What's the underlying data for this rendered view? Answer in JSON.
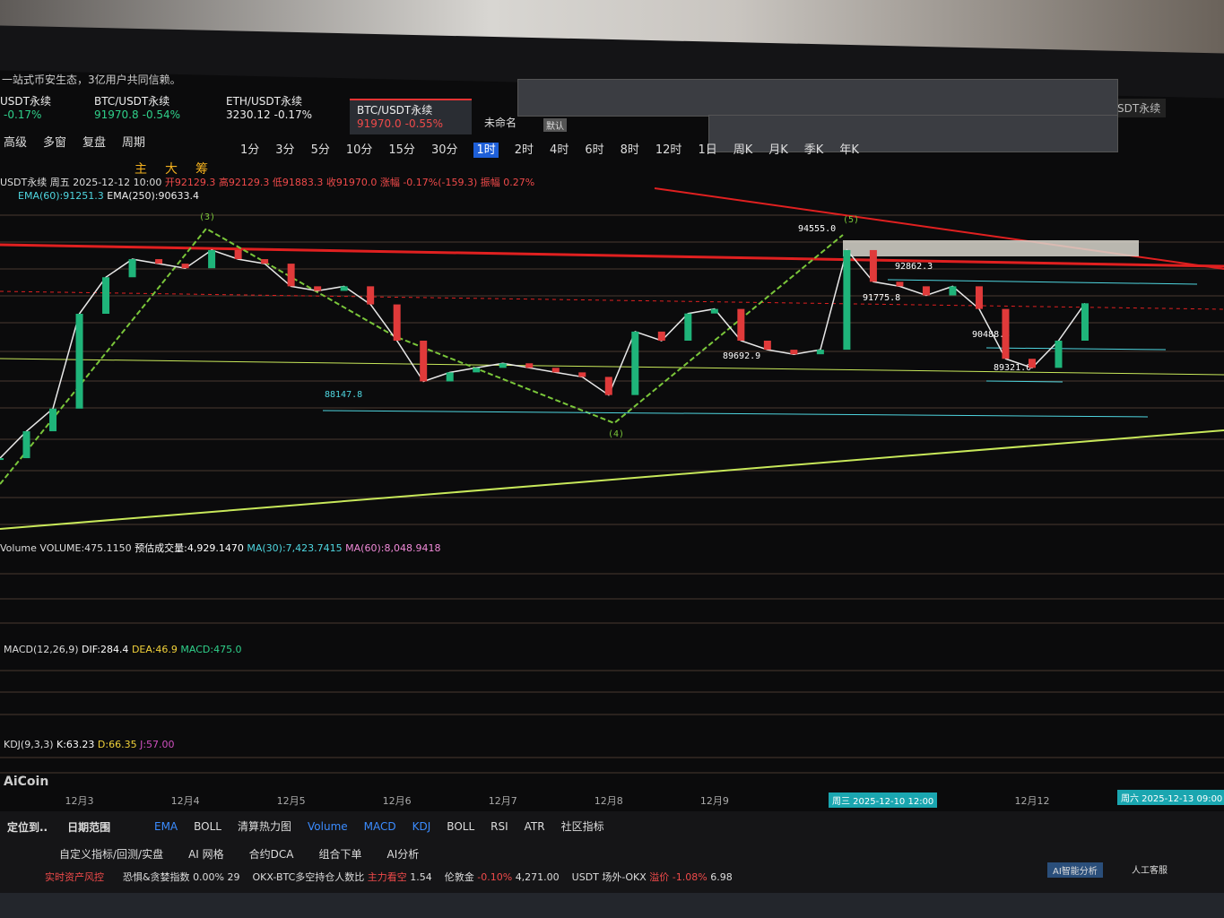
{
  "header": {
    "notice": "一站式币安生态，3亿用户共同信赖。"
  },
  "tickers": [
    {
      "name": "USDT永续",
      "price": "",
      "change": "-0.17%"
    },
    {
      "name": "BTC/USDT永续",
      "price": "91970.8",
      "change": "-0.54%"
    },
    {
      "name": "ETH/USDT永续",
      "price": "3230.12",
      "change": "-0.17%"
    },
    {
      "name": "BTC/USDT永续",
      "price": "91970.0",
      "change": "-0.55%"
    }
  ],
  "layout_tabs": {
    "unnamed": "未命名",
    "default": "默认",
    "right_symbol": "SDT永续"
  },
  "menu": [
    "高级",
    "多窗",
    "复盘",
    "周期"
  ],
  "timeframes": [
    "1分",
    "3分",
    "5分",
    "10分",
    "15分",
    "30分",
    "1时",
    "2时",
    "4时",
    "6时",
    "8时",
    "12时",
    "1日",
    "周K",
    "月K",
    "季K",
    "年K"
  ],
  "active_timeframe": "1时",
  "chart_tools": [
    "主",
    "大",
    "筹"
  ],
  "info_line": {
    "symbol": "USDT永续 周五 2025-12-12 10:00",
    "open": "开92129.3",
    "high": "高92129.3",
    "low": "低91883.3",
    "close": "收91970.0",
    "change": "涨幅 -0.17%(-159.3)",
    "amplitude": "振幅 0.27%"
  },
  "ema_line": {
    "ema60": "EMA(60):91251.3",
    "ema250": "EMA(250):90633.4"
  },
  "chart_data": {
    "type": "line",
    "categories": [
      null,
      null,
      null,
      "12月3",
      null,
      null,
      null,
      "12月4",
      null,
      null,
      null,
      "12月5",
      null,
      null,
      null,
      "12月6",
      null,
      null,
      null,
      "12月7",
      null,
      null,
      null,
      "12月8",
      null,
      null,
      null,
      "12月9",
      null,
      null,
      null,
      null,
      null,
      null,
      null,
      null,
      null,
      null,
      null,
      "12月12",
      null,
      null
    ],
    "series": [
      {
        "name": "BTC/USDT永续",
        "color": "#e8e8e8",
        "values": [
          86500,
          87450,
          88250,
          91600,
          92890,
          93530,
          93370,
          93210,
          93850,
          93530,
          93370,
          92570,
          92410,
          92570,
          91930,
          90650,
          89210,
          89530,
          89690,
          89850,
          89690,
          89530,
          89370,
          88730,
          90970,
          90650,
          91610,
          91770,
          90650,
          90330,
          90170,
          90330,
          93850,
          92730,
          92570,
          92250,
          92570,
          91770,
          90010,
          89690,
          90650,
          91970
        ]
      }
    ],
    "ylim": [
      84000,
      95400
    ],
    "annotations": [
      "94555.0",
      "92862.3",
      "91775.8",
      "90488.8",
      "89321.0",
      "89692.9",
      "88147.8",
      "(3)",
      "(4)",
      "(5)"
    ]
  },
  "panels": {
    "volume": {
      "name": "Volume VOLUME:475.1150",
      "estimate": "预估成交量:4,929.1470",
      "ma30": "MA(30):7,423.7415",
      "ma60": "MA(60):8,048.9418"
    },
    "macd": {
      "name": "MACD(12,26,9)",
      "dif": "DIF:284.4",
      "dea": "DEA:46.9",
      "macd": "MACD:475.0"
    },
    "kdj": {
      "name": "KDJ(9,3,3)",
      "k": "K:63.23",
      "d": "D:66.35",
      "j": "J:57.00"
    }
  },
  "crosshair": {
    "left": "周三 2025-12-10 12:00",
    "right": "周六 2025-12-13 09:00"
  },
  "brand": "AiCoin",
  "indicator_tabs": [
    "EMA",
    "BOLL",
    "清算热力图",
    "Volume",
    "MACD",
    "KDJ",
    "BOLL",
    "RSI",
    "ATR",
    "社区指标"
  ],
  "left_tabs": [
    "定位到..",
    "日期范围"
  ],
  "actions": [
    "自定义指标/回测/实盘",
    "AI 网格",
    "合约DCA",
    "组合下单",
    "AI分析"
  ],
  "status": {
    "risk": "实时资产风控",
    "fear_greed": "恐惧&贪婪指数",
    "fg_pct": "0.00%",
    "fg_val": "29",
    "okx": "OKX-BTC多空持仓人数比",
    "okx_tag": "主力看空",
    "okx_val": "1.54",
    "gold": "伦敦金",
    "gold_pct": "-0.10%",
    "gold_val": "4,271.00",
    "usdt": "USDT 场外-OKX",
    "usdt_tag": "溢价 -1.08%",
    "usdt_val": "6.98",
    "ai": "AI智能分析",
    "service": "人工客服"
  }
}
